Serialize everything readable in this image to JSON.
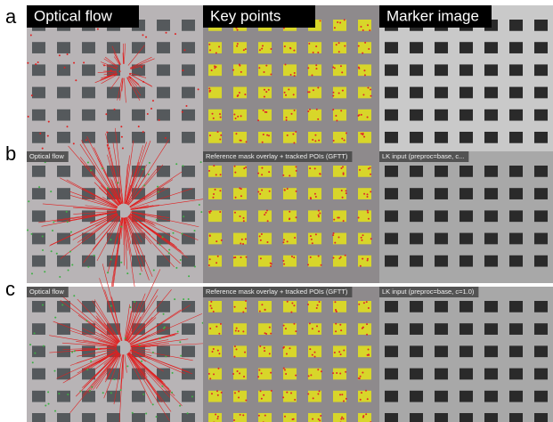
{
  "panel_labels": [
    "a",
    "b",
    "c"
  ],
  "rows": [
    {
      "titles": [
        "Optical flow",
        "Key points",
        "Marker image"
      ]
    },
    {
      "titles": [
        "Optical flow",
        "Reference mask overlay + tracked POIs (GFTT)",
        "LK input (preproc=base, c..."
      ]
    },
    {
      "titles": [
        "Optical flow",
        "Reference mask overlay + tracked POIs (GFTT)",
        "LK input (preproc=base, c=1.0)"
      ]
    }
  ]
}
